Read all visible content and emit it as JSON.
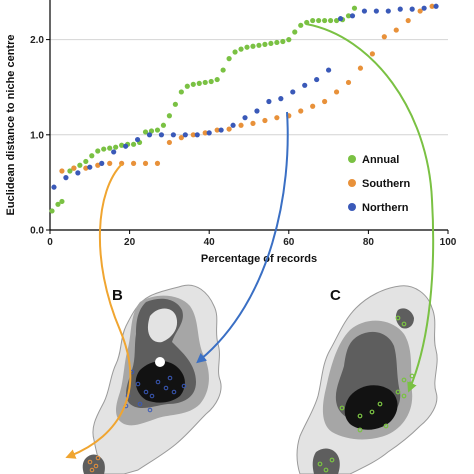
{
  "chart_data": {
    "type": "scatter",
    "xlabel": "Percentage of records",
    "ylabel": "Euclidean distance to niche centre",
    "xlim": [
      0,
      100
    ],
    "ylim": [
      0,
      2.5
    ],
    "x_ticks": [
      "0",
      "20",
      "40",
      "60",
      "80",
      "100"
    ],
    "y_ticks": [
      "0.0",
      "1.0",
      "2.0"
    ],
    "grid": true,
    "legend_position": "right",
    "series": [
      {
        "name": "Annual",
        "color": "#7ac143",
        "x": [
          0.5,
          2,
          3,
          5,
          6,
          7.5,
          9,
          10.5,
          12,
          13.5,
          15,
          16.5,
          18,
          19.5,
          21,
          22.5,
          24,
          25.5,
          27,
          28.5,
          30,
          31.5,
          33,
          34.5,
          36,
          37.5,
          39,
          40.5,
          42,
          43.5,
          45,
          46.5,
          48,
          49.5,
          51,
          52.5,
          54,
          55.5,
          57,
          58.5,
          60,
          61.5,
          63,
          64.5,
          66,
          67.5,
          69,
          70.5,
          72,
          73.5,
          75,
          76.5
        ],
        "y": [
          0.2,
          0.27,
          0.3,
          0.62,
          0.65,
          0.68,
          0.72,
          0.78,
          0.83,
          0.85,
          0.86,
          0.87,
          0.89,
          0.9,
          0.9,
          0.92,
          1.03,
          1.04,
          1.05,
          1.1,
          1.2,
          1.32,
          1.45,
          1.51,
          1.53,
          1.54,
          1.55,
          1.56,
          1.58,
          1.68,
          1.8,
          1.87,
          1.9,
          1.92,
          1.93,
          1.94,
          1.95,
          1.96,
          1.97,
          1.98,
          2.0,
          2.08,
          2.15,
          2.18,
          2.2,
          2.2,
          2.2,
          2.2,
          2.2,
          2.21,
          2.25,
          2.33
        ]
      },
      {
        "name": "Southern",
        "color": "#e8913a",
        "x": [
          3,
          6,
          9,
          12,
          15,
          18,
          21,
          24,
          27,
          30,
          33,
          36,
          39,
          42,
          45,
          48,
          51,
          54,
          57,
          60,
          63,
          66,
          69,
          72,
          75,
          78,
          81,
          84,
          87,
          90,
          93,
          96
        ],
        "y": [
          0.62,
          0.65,
          0.65,
          0.68,
          0.7,
          0.7,
          0.7,
          0.7,
          0.7,
          0.92,
          0.97,
          1.0,
          1.02,
          1.05,
          1.06,
          1.1,
          1.12,
          1.15,
          1.18,
          1.2,
          1.25,
          1.3,
          1.35,
          1.45,
          1.55,
          1.7,
          1.85,
          2.03,
          2.1,
          2.2,
          2.3,
          2.35
        ]
      },
      {
        "name": "Northern",
        "color": "#3a59b8",
        "x": [
          1,
          4,
          7,
          10,
          13,
          16,
          19,
          22,
          25,
          28,
          31,
          34,
          37,
          40,
          43,
          46,
          49,
          52,
          55,
          58,
          61,
          64,
          67,
          70,
          73,
          76,
          79,
          82,
          85,
          88,
          91,
          94,
          97
        ],
        "y": [
          0.45,
          0.55,
          0.6,
          0.66,
          0.7,
          0.82,
          0.88,
          0.95,
          1.0,
          1.0,
          1.0,
          1.0,
          1.0,
          1.02,
          1.05,
          1.1,
          1.18,
          1.25,
          1.35,
          1.38,
          1.45,
          1.52,
          1.58,
          1.68,
          2.22,
          2.25,
          2.3,
          2.3,
          2.3,
          2.32,
          2.32,
          2.33,
          2.35
        ]
      }
    ]
  },
  "panels": {
    "b_label": "B",
    "c_label": "C"
  },
  "colors": {
    "annual_arrow": "#7ac143",
    "southern_arrow": "#f0a530",
    "northern_arrow": "#3a6fc4",
    "map_light": "#e3e3e3",
    "map_mid": "#a6a6a6",
    "map_dark": "#5e5e5e",
    "map_black": "#121212"
  }
}
